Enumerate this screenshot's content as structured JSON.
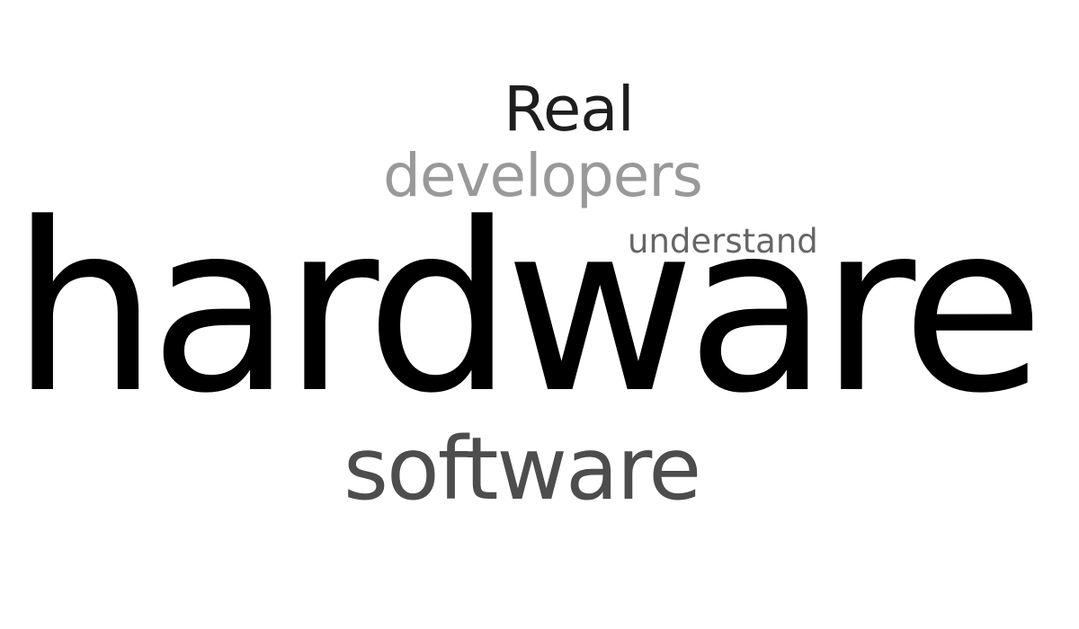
{
  "words": [
    {
      "text": "Real",
      "color": "#1e1e1e"
    },
    {
      "text": "developers",
      "color": "#999999"
    },
    {
      "text": "understand",
      "color": "#666666"
    },
    {
      "text": "hardware",
      "color": "#000000"
    },
    {
      "text": "software",
      "color": "#4d4d4d"
    }
  ]
}
